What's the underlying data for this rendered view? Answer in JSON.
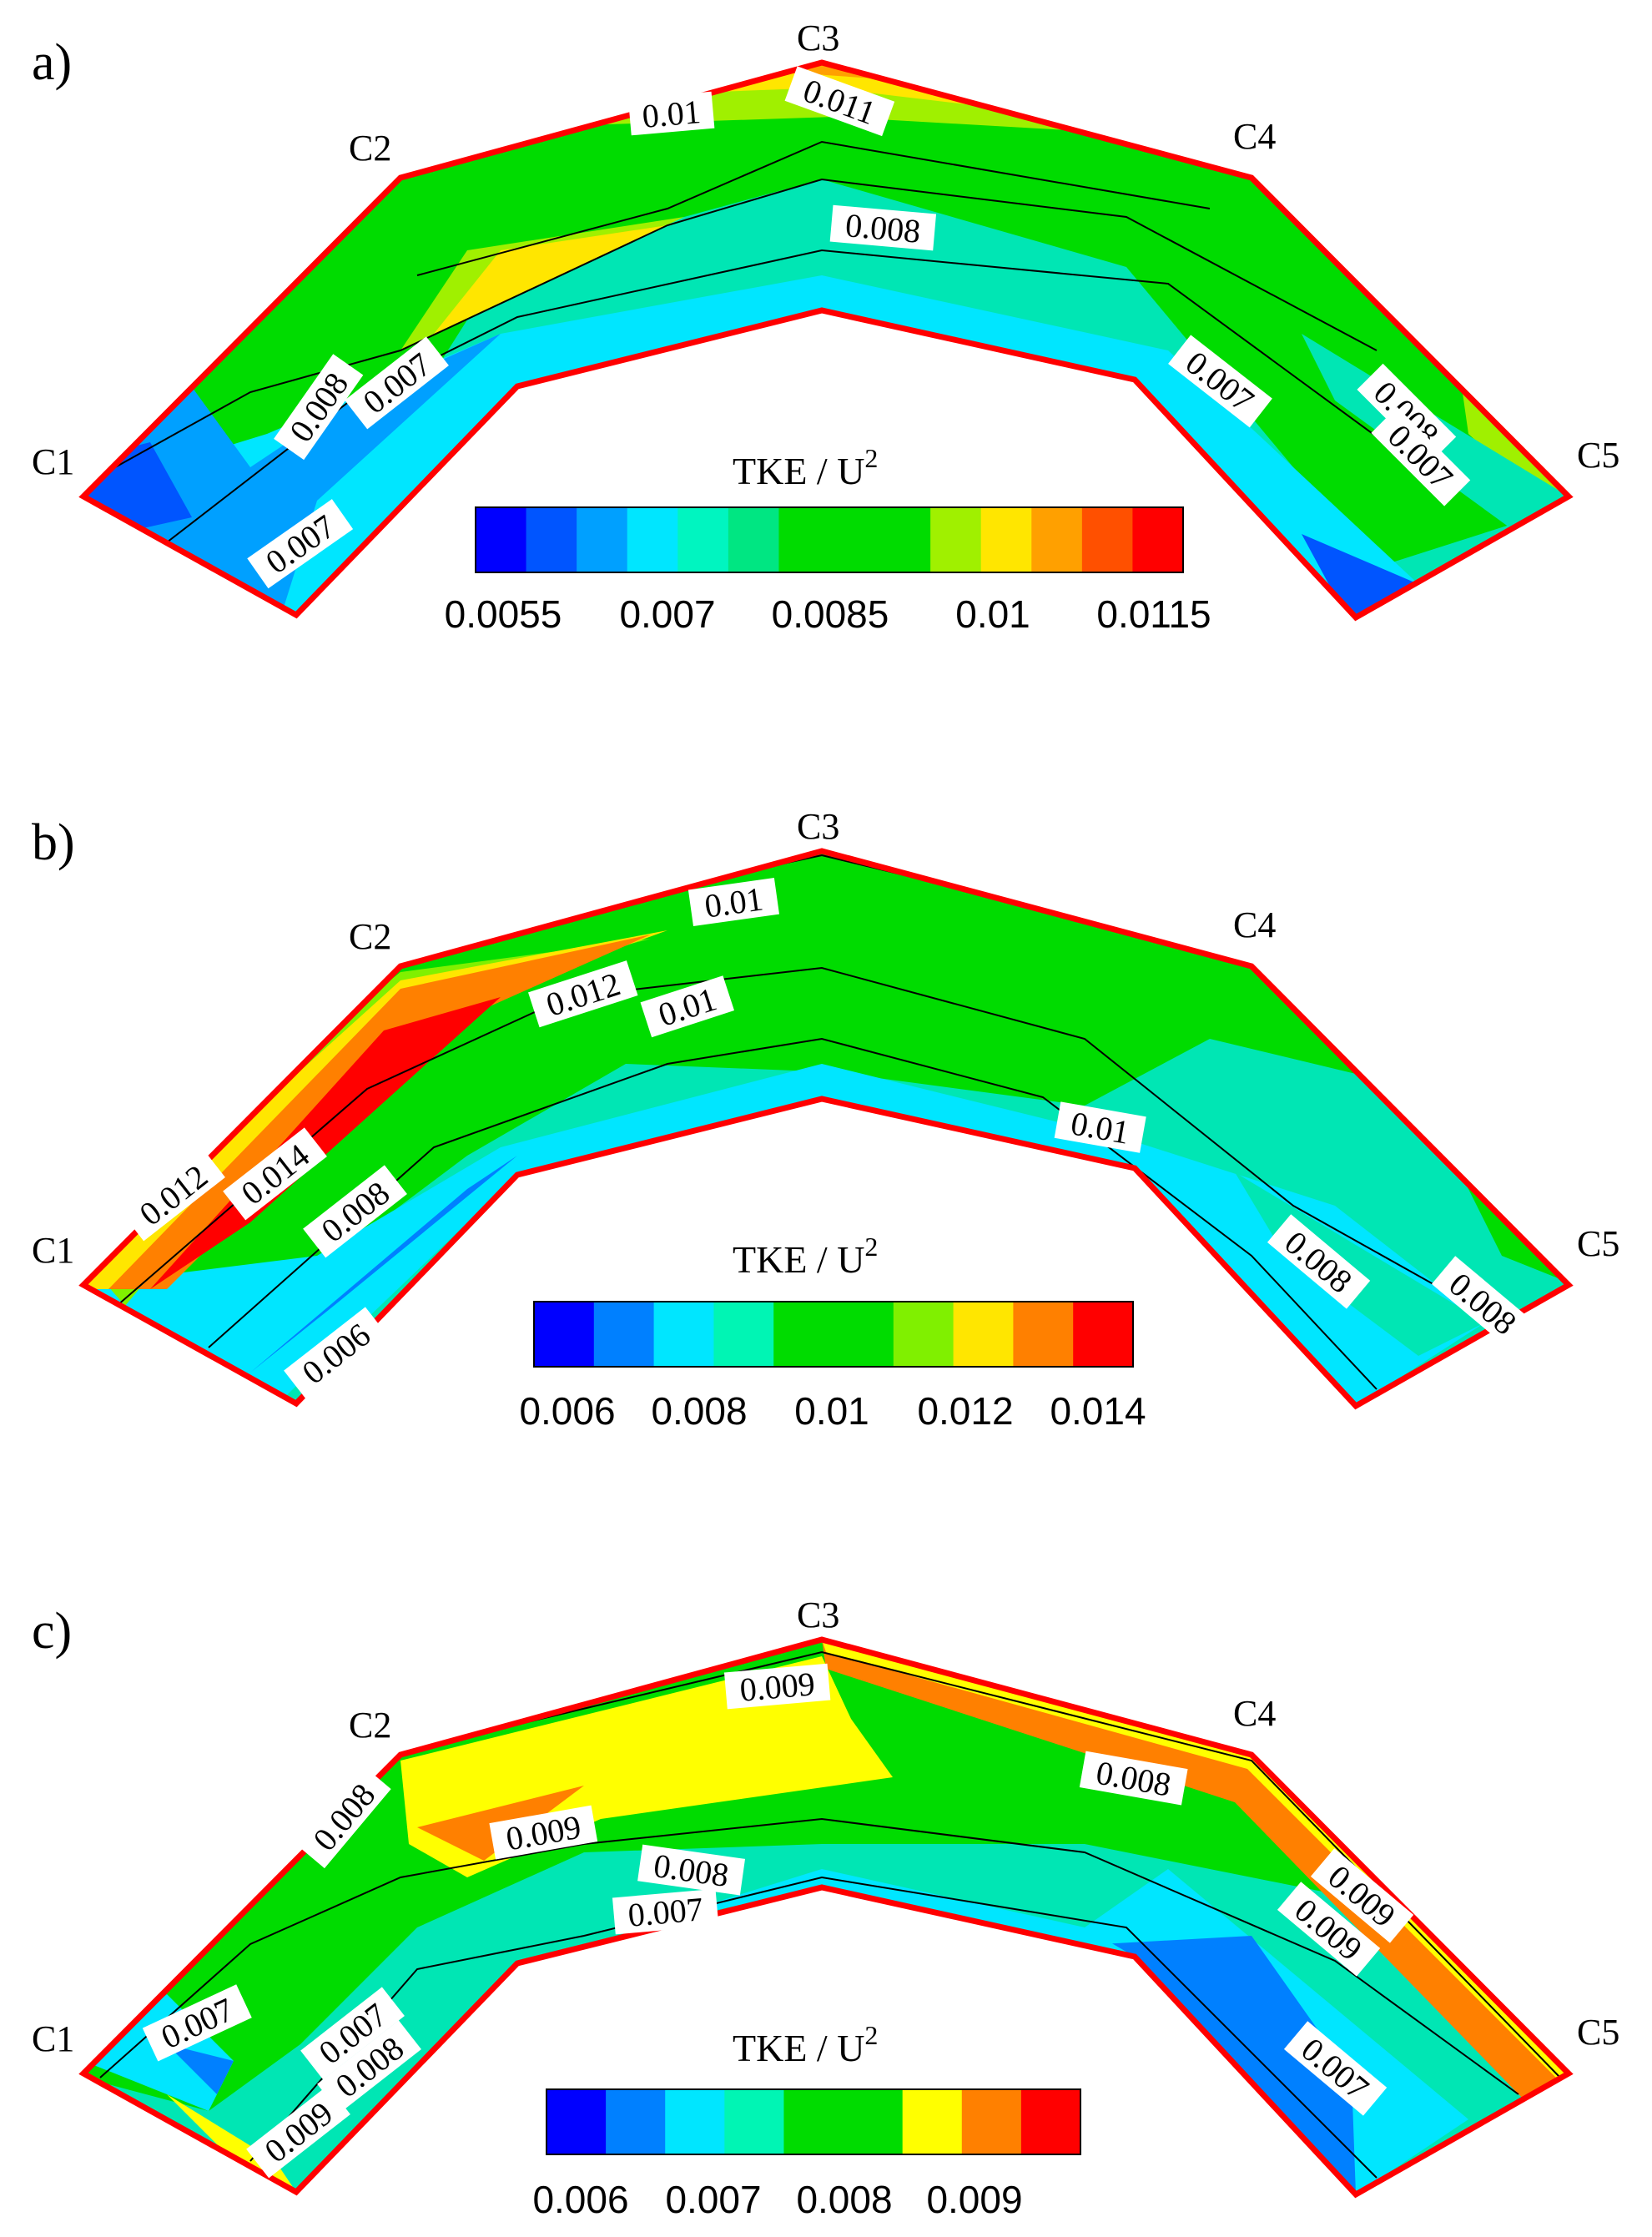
{
  "figure": {
    "panels": [
      {
        "id": "a",
        "letter": "a)",
        "corners": [
          "C1",
          "C2",
          "C3",
          "C4",
          "C5"
        ],
        "colorbar_title": "TKE / U",
        "colorbar_title_sup": "2",
        "colorbar_ticks": [
          "0.0055",
          "0.007",
          "0.0085",
          "0.01",
          "0.0115"
        ],
        "colorbar_colors": [
          "#0000ff",
          "#0055ff",
          "#00a0ff",
          "#00e6ff",
          "#00f5c0",
          "#00e682",
          "#00dc00",
          "#00dc00",
          "#00dc00",
          "#a0f000",
          "#ffe600",
          "#ffa000",
          "#ff5000",
          "#ff0000"
        ],
        "contour_labels": [
          "0.01",
          "0.011",
          "0.008",
          "0.008",
          "0.007",
          "0.007",
          "0.007",
          "0.008",
          "0.007"
        ]
      },
      {
        "id": "b",
        "letter": "b)",
        "corners": [
          "C1",
          "C2",
          "C3",
          "C4",
          "C5"
        ],
        "colorbar_title": "TKE / U",
        "colorbar_title_sup": "2",
        "colorbar_ticks": [
          "0.006",
          "0.008",
          "0.01",
          "0.012",
          "0.014"
        ],
        "colorbar_colors": [
          "#0000ff",
          "#0080ff",
          "#00e6ff",
          "#00f5b4",
          "#00dc00",
          "#00dc00",
          "#80f000",
          "#ffe600",
          "#ff8000",
          "#ff0000"
        ],
        "contour_labels": [
          "0.01",
          "0.012",
          "0.01",
          "0.012",
          "0.014",
          "0.008",
          "0.006",
          "0.01",
          "0.008",
          "0.008"
        ]
      },
      {
        "id": "c",
        "letter": "c)",
        "corners": [
          "C1",
          "C2",
          "C3",
          "C4",
          "C5"
        ],
        "colorbar_title": "TKE / U",
        "colorbar_title_sup": "2",
        "colorbar_ticks": [
          "0.006",
          "0.007",
          "0.008",
          "0.009"
        ],
        "colorbar_colors": [
          "#0000ff",
          "#0080ff",
          "#00e6ff",
          "#00f5b4",
          "#00dc00",
          "#00dc00",
          "#ffff00",
          "#ff8000",
          "#ff0000"
        ],
        "contour_labels": [
          "0.009",
          "0.008",
          "0.009",
          "0.008",
          "0.007",
          "0.008",
          "0.009",
          "0.009",
          "0.007",
          "0.007",
          "0.007",
          "0.008",
          "0.009"
        ]
      }
    ]
  },
  "chart_data": [
    {
      "type": "heatmap",
      "panel": "a)",
      "title": "",
      "colorbar_label": "TKE / U^2",
      "colorbar_ticks": [
        0.0055,
        0.007,
        0.0085,
        0.01,
        0.0115
      ],
      "levels": [
        0.005,
        0.0055,
        0.006,
        0.0065,
        0.007,
        0.0075,
        0.008,
        0.0085,
        0.009,
        0.0095,
        0.01,
        0.0105,
        0.011,
        0.0115,
        0.012
      ],
      "contour_labels": [
        0.01,
        0.011,
        0.008,
        0.008,
        0.007,
        0.007,
        0.007,
        0.008,
        0.007
      ],
      "range": [
        0.005,
        0.012
      ]
    },
    {
      "type": "heatmap",
      "panel": "b)",
      "title": "",
      "colorbar_label": "TKE / U^2",
      "colorbar_ticks": [
        0.006,
        0.008,
        0.01,
        0.012,
        0.014
      ],
      "levels": [
        0.005,
        0.006,
        0.007,
        0.008,
        0.009,
        0.01,
        0.011,
        0.012,
        0.013,
        0.014,
        0.015
      ],
      "contour_labels": [
        0.01,
        0.012,
        0.01,
        0.012,
        0.014,
        0.008,
        0.006,
        0.01,
        0.008,
        0.008
      ],
      "range": [
        0.005,
        0.015
      ]
    },
    {
      "type": "heatmap",
      "panel": "c)",
      "title": "",
      "colorbar_label": "TKE / U^2",
      "colorbar_ticks": [
        0.006,
        0.007,
        0.008,
        0.009
      ],
      "levels": [
        0.0055,
        0.006,
        0.0065,
        0.007,
        0.0075,
        0.008,
        0.0085,
        0.009,
        0.0095,
        0.01
      ],
      "contour_labels": [
        0.009,
        0.008,
        0.009,
        0.008,
        0.007,
        0.008,
        0.009,
        0.009,
        0.007,
        0.007,
        0.007,
        0.008,
        0.009
      ],
      "range": [
        0.0055,
        0.01
      ]
    }
  ]
}
